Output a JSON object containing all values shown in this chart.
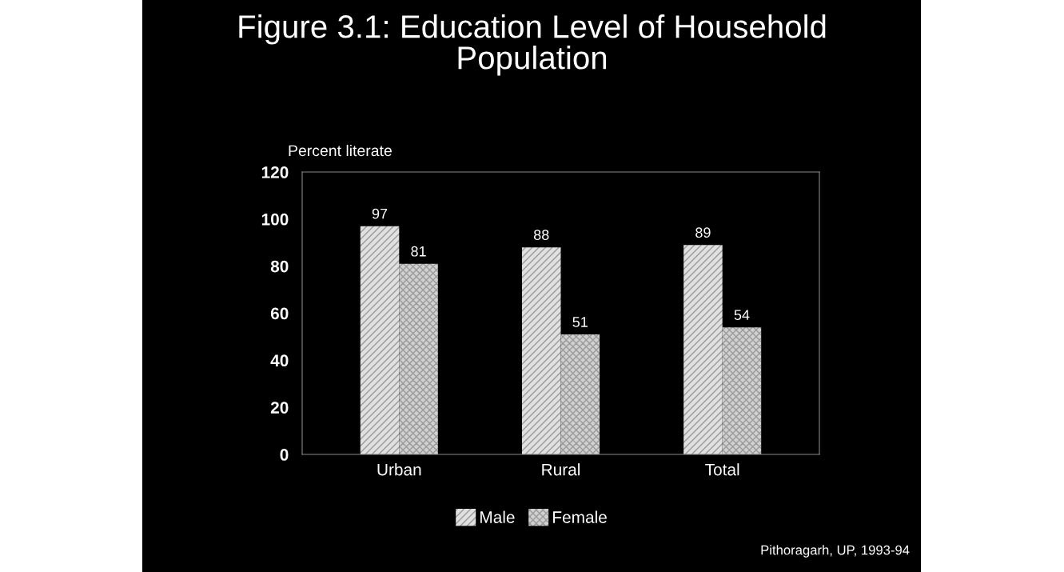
{
  "chart_data": {
    "type": "bar",
    "title": "Figure 3.1: Education Level of Household\nPopulation",
    "ylabel": "Percent literate",
    "categories": [
      "Urban",
      "Rural",
      "Total"
    ],
    "series": [
      {
        "name": "Male",
        "color": "#e0e0e0",
        "values": [
          97,
          88,
          89
        ]
      },
      {
        "name": "Female",
        "color": "#d0d0d0",
        "values": [
          81,
          51,
          54
        ]
      }
    ],
    "ylim": [
      0,
      120
    ],
    "yticks": [
      0,
      20,
      40,
      60,
      80,
      100,
      120
    ],
    "grid": false,
    "legend": "bottom",
    "data_labels": true,
    "annotations": [
      "Pithoragarh, UP, 1993-94"
    ]
  }
}
